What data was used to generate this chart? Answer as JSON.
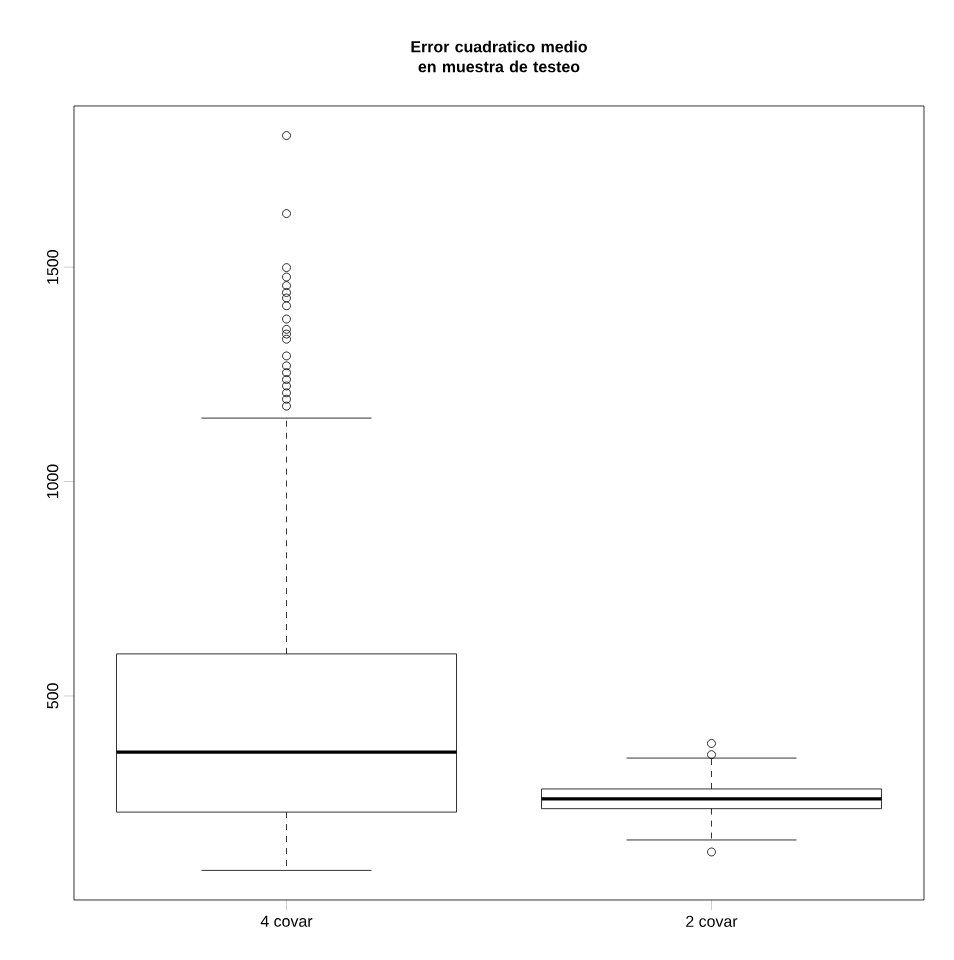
{
  "chart_data": {
    "type": "box",
    "title": "Error cuadratico medio en muestra de testeo",
    "categories": [
      "4 covar",
      "2 covar"
    ],
    "boxes": [
      {
        "low": 93,
        "q1": 229,
        "median": 369,
        "q3": 598,
        "high": 1148,
        "outliers": [
          1807,
          1625,
          1499,
          1477,
          1457,
          1441,
          1428,
          1410,
          1379,
          1355,
          1344,
          1332,
          1293,
          1270,
          1254,
          1238,
          1223,
          1207,
          1192,
          1176
        ]
      },
      {
        "low": 164,
        "q1": 237,
        "median": 260,
        "q3": 283,
        "high": 355,
        "outliers": [
          389,
          363,
          136
        ]
      }
    ],
    "ylim": [
      24,
      1876
    ],
    "yticks": [
      500,
      1000,
      1500
    ],
    "grid": false,
    "marker": "circle"
  }
}
